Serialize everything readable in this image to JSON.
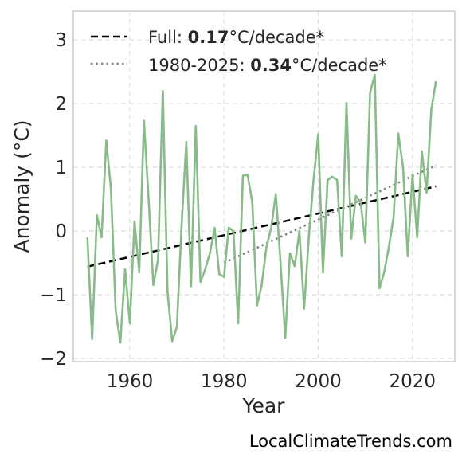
{
  "chart_data": {
    "type": "line",
    "xlabel": "Year",
    "ylabel": "Anomaly (°C)",
    "xlim": [
      1948,
      2029
    ],
    "ylim": [
      -2.05,
      3.45
    ],
    "xticks": [
      1960,
      1980,
      2000,
      2020
    ],
    "xtick_labels": [
      "1960",
      "1980",
      "2000",
      "2020"
    ],
    "yticks": [
      -2,
      -1,
      0,
      1,
      2,
      3
    ],
    "ytick_labels": [
      "−2",
      "−1",
      "0",
      "1",
      "2",
      "3"
    ],
    "grid": true,
    "legend_position": "top-left",
    "colors": {
      "series": "#88bb88",
      "full_trend": "#000000",
      "recent_trend": "#808080",
      "grid": "#e0e0e0",
      "frame": "#cccccc"
    },
    "series": [
      {
        "x": [
          1951,
          1952,
          1953,
          1954,
          1955,
          1956,
          1957,
          1958,
          1959,
          1960,
          1961,
          1962,
          1963,
          1964,
          1965,
          1966,
          1967,
          1968,
          1969,
          1970,
          1971,
          1972,
          1973,
          1974,
          1975,
          1976,
          1977,
          1978,
          1979,
          1980,
          1981,
          1982,
          1983,
          1984,
          1985,
          1986,
          1987,
          1988,
          1989,
          1990,
          1991,
          1992,
          1993,
          1994,
          1995,
          1996,
          1997,
          1998,
          1999,
          2000,
          2001,
          2002,
          2003,
          2004,
          2005,
          2006,
          2007,
          2008,
          2009,
          2010,
          2011,
          2012,
          2013,
          2014,
          2015,
          2016,
          2017,
          2018,
          2019,
          2020,
          2021,
          2022,
          2023,
          2024,
          2025
        ],
        "values": [
          -0.1,
          -1.7,
          0.25,
          -0.1,
          1.42,
          0.65,
          -1.25,
          -1.75,
          -0.6,
          -1.45,
          0.15,
          -0.65,
          1.73,
          0.5,
          -0.85,
          -0.45,
          2.2,
          -0.95,
          -1.73,
          -1.5,
          0.1,
          1.4,
          -0.87,
          1.65,
          -0.8,
          -0.6,
          -0.35,
          0.05,
          -0.68,
          -0.72,
          0.05,
          0.0,
          -1.45,
          0.87,
          0.88,
          0.45,
          -1.17,
          -0.85,
          -0.25,
          0.05,
          0.58,
          -0.5,
          -1.68,
          -0.35,
          -0.55,
          0.0,
          -1.22,
          -0.1,
          0.8,
          1.52,
          -0.65,
          0.8,
          0.85,
          0.8,
          -0.4,
          2.01,
          -0.12,
          0.55,
          0.45,
          -0.18,
          2.17,
          2.45,
          -0.9,
          -0.65,
          -0.25,
          0.22,
          1.53,
          1.0,
          -0.4,
          0.88,
          -0.1,
          1.25,
          0.6,
          1.9,
          2.35
        ]
      }
    ],
    "trends": [
      {
        "style": "dashed",
        "x": [
          1951,
          2025
        ],
        "y": [
          -0.56,
          0.7
        ]
      },
      {
        "style": "dotted",
        "x": [
          1980,
          2025
        ],
        "y": [
          -0.5,
          1.03
        ]
      }
    ]
  },
  "legend": [
    {
      "prefix": "Full: ",
      "value": "0.17",
      "suffix": "°C/decade*"
    },
    {
      "prefix": "1980-2025: ",
      "value": "0.34",
      "suffix": "°C/decade*"
    }
  ],
  "credit": "LocalClimateTrends.com"
}
